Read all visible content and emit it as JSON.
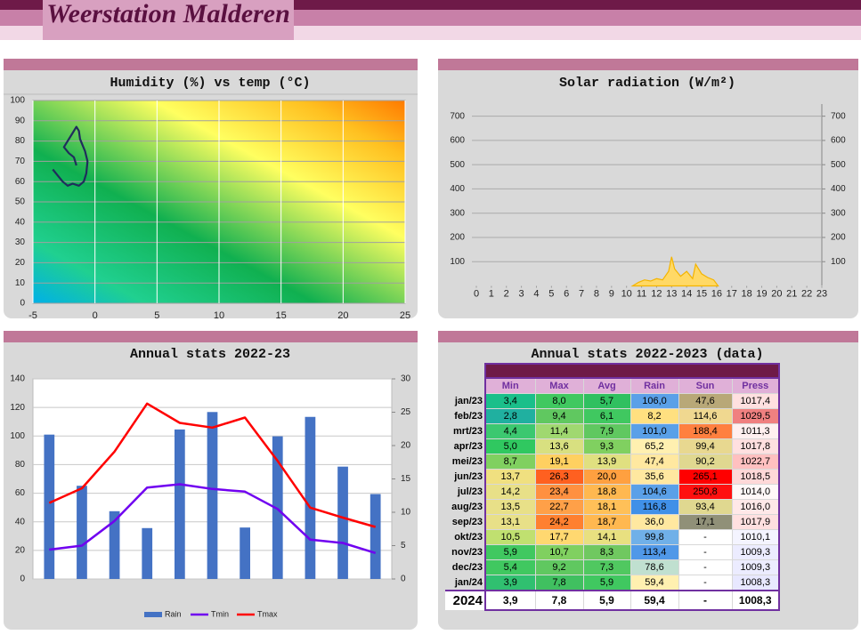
{
  "header": {
    "title": "Weerstation Malderen"
  },
  "chart_data": [
    {
      "type": "line",
      "title": "Humidity (%) vs temp (°C)",
      "x": [
        -3.4,
        -3.0,
        -2.6,
        -2.2,
        -1.8,
        -1.3,
        -0.9,
        -0.7,
        -0.6,
        -0.8,
        -1.0,
        -1.2,
        -1.3,
        -1.5,
        -1.8,
        -2.2,
        -2.5,
        -2.1,
        -1.7,
        -1.5
      ],
      "series": [
        {
          "color": "#1f2d5c",
          "values": [
            66,
            63,
            60,
            58,
            59,
            58,
            60,
            64,
            70,
            75,
            78,
            81,
            85,
            87,
            84,
            80,
            77,
            74,
            72,
            68
          ]
        }
      ],
      "xlim": [
        -5,
        25
      ],
      "xticks": [
        -5,
        0,
        5,
        10,
        15,
        20,
        25
      ],
      "ylim": [
        0,
        100
      ],
      "yticks": [
        0,
        10,
        20,
        30,
        40,
        50,
        60,
        70,
        80,
        90,
        100
      ],
      "grid": true
    },
    {
      "type": "area",
      "title": "Solar radiation (W/m²)",
      "x": [
        10.4,
        10.8,
        11.2,
        11.6,
        12,
        12.4,
        12.8,
        13,
        13.2,
        13.6,
        14,
        14.4,
        14.6,
        15,
        15.4,
        15.8,
        16.1
      ],
      "series": [
        {
          "color": "#ffd966",
          "values": [
            0,
            15,
            25,
            20,
            30,
            25,
            60,
            120,
            70,
            40,
            60,
            30,
            90,
            50,
            35,
            25,
            0
          ]
        }
      ],
      "xlim": [
        0,
        23
      ],
      "xticks": [
        0,
        1,
        2,
        3,
        4,
        5,
        6,
        7,
        8,
        9,
        10,
        11,
        12,
        13,
        14,
        15,
        16,
        17,
        18,
        19,
        20,
        21,
        22,
        23
      ],
      "ylim": [
        0,
        750
      ],
      "yticks": [
        100,
        200,
        300,
        400,
        500,
        600,
        700
      ],
      "y2lim": [
        0,
        750
      ],
      "y2ticks": [
        100,
        200,
        300,
        400,
        500,
        600,
        700
      ],
      "grid": true
    },
    {
      "type": "bar-line",
      "title": "Annual stats 2022-23",
      "categories": [
        null,
        null,
        null,
        null,
        null,
        null,
        null,
        null,
        null,
        null,
        null
      ],
      "series": [
        {
          "name": "Rain",
          "type": "bar",
          "color": "#4472c4",
          "values": [
            101.0,
            65.2,
            47.4,
            35.6,
            104.6,
            116.8,
            36.0,
            99.8,
            113.4,
            78.6,
            59.4
          ]
        },
        {
          "name": "Tmin",
          "type": "line",
          "axis": "y2",
          "color": "#7000f0",
          "values": [
            4.4,
            5.0,
            8.7,
            13.7,
            14.2,
            13.5,
            13.1,
            10.5,
            5.9,
            5.4,
            3.9
          ]
        },
        {
          "name": "Tmax",
          "type": "line",
          "axis": "y2",
          "color": "#ff0000",
          "values": [
            11.4,
            13.6,
            19.1,
            26.3,
            23.4,
            22.7,
            24.2,
            17.7,
            10.7,
            9.2,
            7.8
          ]
        }
      ],
      "ylim": [
        0,
        140
      ],
      "yticks": [
        0,
        20,
        40,
        60,
        80,
        100,
        120,
        140
      ],
      "y2lim": [
        0,
        30
      ],
      "y2ticks": [
        0,
        5,
        10,
        15,
        20,
        25,
        30
      ],
      "grid": true,
      "legend": "bottom"
    }
  ],
  "table": {
    "title": "Annual stats 2022-2023 (data)",
    "columns": [
      "Min",
      "Max",
      "Avg",
      "Rain",
      "Sun",
      "Press"
    ],
    "rows": [
      {
        "label": "jan/23",
        "cells": [
          "3,4",
          "8,0",
          "5,7",
          "106,0",
          "47,6",
          "1017,4"
        ],
        "colors": [
          "#1abf8a",
          "#40c860",
          "#30c060",
          "#5aa0e8",
          "#b8a878",
          "#ffe0e0"
        ]
      },
      {
        "label": "feb/23",
        "cells": [
          "2,8",
          "9,4",
          "6,1",
          "8,2",
          "114,6",
          "1029,5"
        ],
        "colors": [
          "#20b0a0",
          "#60c860",
          "#40c860",
          "#ffe080",
          "#f0d890",
          "#f08080"
        ]
      },
      {
        "label": "mrt/23",
        "cells": [
          "4,4",
          "11,4",
          "7,9",
          "101,0",
          "188,4",
          "1011,3"
        ],
        "colors": [
          "#3cc870",
          "#a0d870",
          "#60c860",
          "#5aa0e8",
          "#ff8040",
          "#fff0f0"
        ]
      },
      {
        "label": "apr/23",
        "cells": [
          "5,0",
          "13,6",
          "9,3",
          "65,2",
          "99,4",
          "1017,8"
        ],
        "colors": [
          "#30c860",
          "#d8e080",
          "#80d060",
          "#fff0b0",
          "#e8d890",
          "#ffe0e0"
        ]
      },
      {
        "label": "mei/23",
        "cells": [
          "8,7",
          "19,1",
          "13,9",
          "47,4",
          "90,2",
          "1022,7"
        ],
        "colors": [
          "#80d060",
          "#ffd060",
          "#e0e080",
          "#ffe8a0",
          "#e0d890",
          "#ffc0c0"
        ]
      },
      {
        "label": "jun/23",
        "cells": [
          "13,7",
          "26,3",
          "20,0",
          "35,6",
          "265,1",
          "1018,5"
        ],
        "colors": [
          "#f0e080",
          "#ff6020",
          "#ffa040",
          "#ffe8a0",
          "#ff0000",
          "#ffd8d8"
        ]
      },
      {
        "label": "jul/23",
        "cells": [
          "14,2",
          "23,4",
          "18,8",
          "104,6",
          "250,8",
          "1014,0"
        ],
        "colors": [
          "#e8e088",
          "#ff9040",
          "#ffb850",
          "#5aa0e8",
          "#ff1010",
          "#fff8f8"
        ]
      },
      {
        "label": "aug/23",
        "cells": [
          "13,5",
          "22,7",
          "18,1",
          "116,8",
          "93,4",
          "1016,0"
        ],
        "colors": [
          "#e8e088",
          "#ffa048",
          "#ffc058",
          "#4090e8",
          "#e0d890",
          "#ffe8e8"
        ]
      },
      {
        "label": "sep/23",
        "cells": [
          "13,1",
          "24,2",
          "18,7",
          "36,0",
          "17,1",
          "1017,9"
        ],
        "colors": [
          "#e8e088",
          "#ff8030",
          "#ffb850",
          "#ffe8a0",
          "#909078",
          "#ffe0e0"
        ]
      },
      {
        "label": "okt/23",
        "cells": [
          "10,5",
          "17,7",
          "14,1",
          "99,8",
          "-",
          "1010,1"
        ],
        "colors": [
          "#c0e070",
          "#ffd870",
          "#e8e080",
          "#70b0e8",
          "#ffffff",
          "#f4f4ff"
        ]
      },
      {
        "label": "nov/23",
        "cells": [
          "5,9",
          "10,7",
          "8,3",
          "113,4",
          "-",
          "1009,3"
        ],
        "colors": [
          "#40c860",
          "#80d060",
          "#70c860",
          "#5098e8",
          "#ffffff",
          "#ececff"
        ]
      },
      {
        "label": "dec/23",
        "cells": [
          "5,4",
          "9,2",
          "7,3",
          "78,6",
          "-",
          "1009,3"
        ],
        "colors": [
          "#40c860",
          "#60c860",
          "#50c860",
          "#c0e0d0",
          "#ffffff",
          "#ececff"
        ]
      },
      {
        "label": "jan/24",
        "cells": [
          "3,9",
          "7,8",
          "5,9",
          "59,4",
          "-",
          "1008,3"
        ],
        "colors": [
          "#30c070",
          "#40c060",
          "#40c860",
          "#fff0b0",
          "#ffffff",
          "#e8e8ff"
        ]
      }
    ],
    "footer": {
      "label": "2024",
      "cells": [
        "3,9",
        "7,8",
        "5,9",
        "59,4",
        "-",
        "1008,3"
      ]
    }
  }
}
